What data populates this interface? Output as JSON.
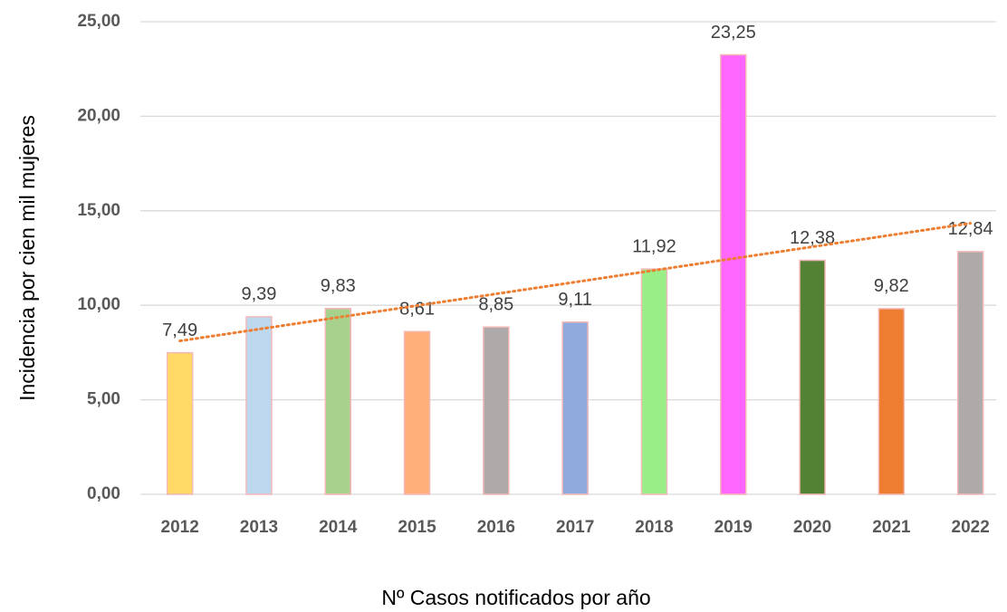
{
  "chart_data": {
    "type": "bar",
    "y_label": "Incidencia  por cien mil  mujeres",
    "x_label": "Nº Casos notificados por año",
    "categories": [
      "2012",
      "2013",
      "2014",
      "2015",
      "2016",
      "2017",
      "2018",
      "2019",
      "2020",
      "2021",
      "2022"
    ],
    "values": [
      7.49,
      9.39,
      9.83,
      8.61,
      8.85,
      9.11,
      11.92,
      23.25,
      12.38,
      9.82,
      12.84
    ],
    "value_labels": [
      "7,49",
      "9,39",
      "9,83",
      "8,61",
      "8,85",
      "9,11",
      "11,92",
      "23,25",
      "12,38",
      "9,82",
      "12,84"
    ],
    "colors": [
      "#ffd966",
      "#bdd7ee",
      "#a9d18e",
      "#ffb07a",
      "#aeaaaa",
      "#8faadc",
      "#99ee88",
      "#ff66ff",
      "#548235",
      "#ed7d31",
      "#aeaaaa"
    ],
    "ylim": [
      0,
      25
    ],
    "yticks": [
      {
        "value": 0,
        "label": "0,00"
      },
      {
        "value": 5,
        "label": "5,00"
      },
      {
        "value": 10,
        "label": "10,00"
      },
      {
        "value": 15,
        "label": "15,00"
      },
      {
        "value": 20,
        "label": "20,00"
      },
      {
        "value": 25,
        "label": "25,00"
      }
    ],
    "grid": true,
    "trendline": {
      "type": "linear",
      "color": "#ed7d31"
    }
  }
}
